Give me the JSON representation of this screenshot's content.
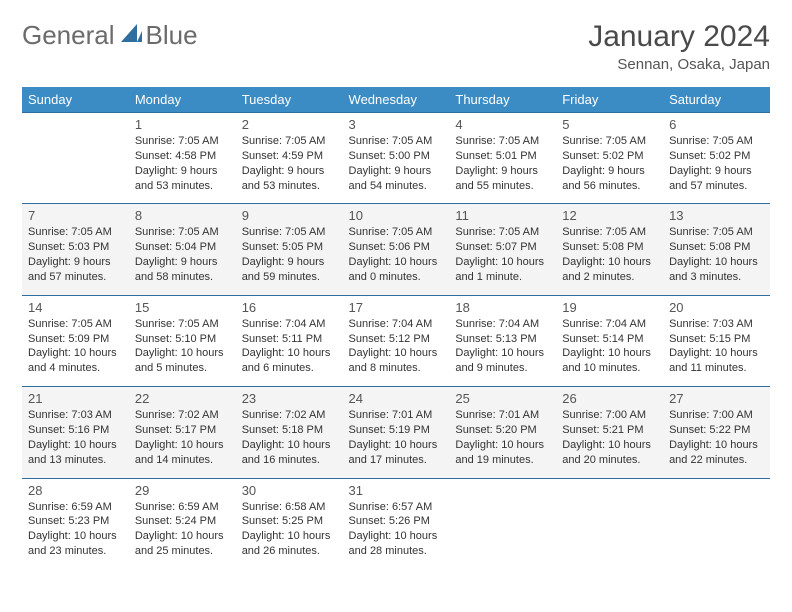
{
  "logo": {
    "text1": "General",
    "text2": "Blue"
  },
  "title": "January 2024",
  "location": "Sennan, Osaka, Japan",
  "colors": {
    "header_bg": "#3b8bc4",
    "header_text": "#ffffff",
    "row_border": "#2f6fa0",
    "alt_row_bg": "#f4f4f4",
    "logo_blue": "#2f6fa0",
    "text_gray": "#555555"
  },
  "daynames": [
    "Sunday",
    "Monday",
    "Tuesday",
    "Wednesday",
    "Thursday",
    "Friday",
    "Saturday"
  ],
  "weeks": [
    {
      "alt": false,
      "days": [
        null,
        {
          "n": "1",
          "rise": "7:05 AM",
          "set": "4:58 PM",
          "dl": "9 hours and 53 minutes."
        },
        {
          "n": "2",
          "rise": "7:05 AM",
          "set": "4:59 PM",
          "dl": "9 hours and 53 minutes."
        },
        {
          "n": "3",
          "rise": "7:05 AM",
          "set": "5:00 PM",
          "dl": "9 hours and 54 minutes."
        },
        {
          "n": "4",
          "rise": "7:05 AM",
          "set": "5:01 PM",
          "dl": "9 hours and 55 minutes."
        },
        {
          "n": "5",
          "rise": "7:05 AM",
          "set": "5:02 PM",
          "dl": "9 hours and 56 minutes."
        },
        {
          "n": "6",
          "rise": "7:05 AM",
          "set": "5:02 PM",
          "dl": "9 hours and 57 minutes."
        }
      ]
    },
    {
      "alt": true,
      "days": [
        {
          "n": "7",
          "rise": "7:05 AM",
          "set": "5:03 PM",
          "dl": "9 hours and 57 minutes."
        },
        {
          "n": "8",
          "rise": "7:05 AM",
          "set": "5:04 PM",
          "dl": "9 hours and 58 minutes."
        },
        {
          "n": "9",
          "rise": "7:05 AM",
          "set": "5:05 PM",
          "dl": "9 hours and 59 minutes."
        },
        {
          "n": "10",
          "rise": "7:05 AM",
          "set": "5:06 PM",
          "dl": "10 hours and 0 minutes."
        },
        {
          "n": "11",
          "rise": "7:05 AM",
          "set": "5:07 PM",
          "dl": "10 hours and 1 minute."
        },
        {
          "n": "12",
          "rise": "7:05 AM",
          "set": "5:08 PM",
          "dl": "10 hours and 2 minutes."
        },
        {
          "n": "13",
          "rise": "7:05 AM",
          "set": "5:08 PM",
          "dl": "10 hours and 3 minutes."
        }
      ]
    },
    {
      "alt": false,
      "days": [
        {
          "n": "14",
          "rise": "7:05 AM",
          "set": "5:09 PM",
          "dl": "10 hours and 4 minutes."
        },
        {
          "n": "15",
          "rise": "7:05 AM",
          "set": "5:10 PM",
          "dl": "10 hours and 5 minutes."
        },
        {
          "n": "16",
          "rise": "7:04 AM",
          "set": "5:11 PM",
          "dl": "10 hours and 6 minutes."
        },
        {
          "n": "17",
          "rise": "7:04 AM",
          "set": "5:12 PM",
          "dl": "10 hours and 8 minutes."
        },
        {
          "n": "18",
          "rise": "7:04 AM",
          "set": "5:13 PM",
          "dl": "10 hours and 9 minutes."
        },
        {
          "n": "19",
          "rise": "7:04 AM",
          "set": "5:14 PM",
          "dl": "10 hours and 10 minutes."
        },
        {
          "n": "20",
          "rise": "7:03 AM",
          "set": "5:15 PM",
          "dl": "10 hours and 11 minutes."
        }
      ]
    },
    {
      "alt": true,
      "days": [
        {
          "n": "21",
          "rise": "7:03 AM",
          "set": "5:16 PM",
          "dl": "10 hours and 13 minutes."
        },
        {
          "n": "22",
          "rise": "7:02 AM",
          "set": "5:17 PM",
          "dl": "10 hours and 14 minutes."
        },
        {
          "n": "23",
          "rise": "7:02 AM",
          "set": "5:18 PM",
          "dl": "10 hours and 16 minutes."
        },
        {
          "n": "24",
          "rise": "7:01 AM",
          "set": "5:19 PM",
          "dl": "10 hours and 17 minutes."
        },
        {
          "n": "25",
          "rise": "7:01 AM",
          "set": "5:20 PM",
          "dl": "10 hours and 19 minutes."
        },
        {
          "n": "26",
          "rise": "7:00 AM",
          "set": "5:21 PM",
          "dl": "10 hours and 20 minutes."
        },
        {
          "n": "27",
          "rise": "7:00 AM",
          "set": "5:22 PM",
          "dl": "10 hours and 22 minutes."
        }
      ]
    },
    {
      "alt": false,
      "days": [
        {
          "n": "28",
          "rise": "6:59 AM",
          "set": "5:23 PM",
          "dl": "10 hours and 23 minutes."
        },
        {
          "n": "29",
          "rise": "6:59 AM",
          "set": "5:24 PM",
          "dl": "10 hours and 25 minutes."
        },
        {
          "n": "30",
          "rise": "6:58 AM",
          "set": "5:25 PM",
          "dl": "10 hours and 26 minutes."
        },
        {
          "n": "31",
          "rise": "6:57 AM",
          "set": "5:26 PM",
          "dl": "10 hours and 28 minutes."
        },
        null,
        null,
        null
      ]
    }
  ],
  "labels": {
    "sunrise": "Sunrise:",
    "sunset": "Sunset:",
    "daylight": "Daylight:"
  }
}
